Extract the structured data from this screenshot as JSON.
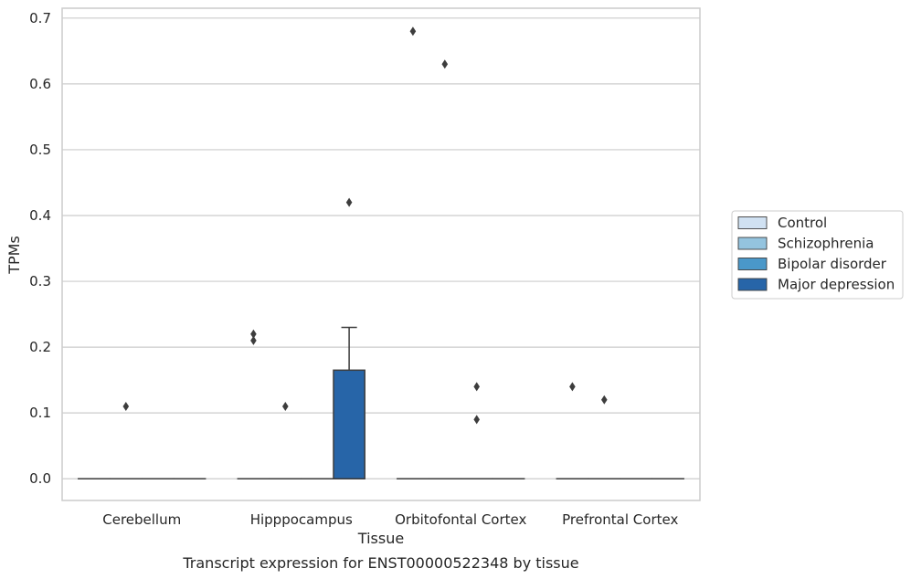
{
  "chart_data": {
    "type": "box",
    "title": "",
    "xlabel": "Tissue",
    "ylabel": "TPMs",
    "caption": "Transcript expression for ENST00000522348 by tissue",
    "ylim": [
      -0.033,
      0.715
    ],
    "yticks": [
      0.0,
      0.1,
      0.2,
      0.3,
      0.4,
      0.5,
      0.6,
      0.7
    ],
    "ytick_labels": [
      "0.0",
      "0.1",
      "0.2",
      "0.3",
      "0.4",
      "0.5",
      "0.6",
      "0.7"
    ],
    "categories": [
      "Cerebellum",
      "Hipppocampus",
      "Orbitofontal Cortex",
      "Prefrontal Cortex"
    ],
    "grid": "horizontal",
    "legend": {
      "placement": "right",
      "entries": [
        "Control",
        "Schizophrenia",
        "Bipolar disorder",
        "Major depression"
      ]
    },
    "colors": {
      "Control": "#d0e1f2",
      "Schizophrenia": "#94c4df",
      "Bipolar disorder": "#4a98c9",
      "Major depression": "#2765a8",
      "grid": "#cccccc",
      "box_edge": "#3d3d3d"
    },
    "series": [
      {
        "name": "Control",
        "boxes": [
          {
            "category": "Cerebellum",
            "q1": 0,
            "median": 0,
            "q3": 0,
            "whisker_low": 0,
            "whisker_high": 0,
            "outliers": []
          },
          {
            "category": "Hipppocampus",
            "q1": 0,
            "median": 0,
            "q3": 0,
            "whisker_low": 0,
            "whisker_high": 0,
            "outliers": [
              0.22,
              0.21
            ]
          },
          {
            "category": "Orbitofontal Cortex",
            "q1": 0,
            "median": 0,
            "q3": 0,
            "whisker_low": 0,
            "whisker_high": 0,
            "outliers": [
              0.68
            ]
          },
          {
            "category": "Prefrontal Cortex",
            "q1": 0,
            "median": 0,
            "q3": 0,
            "whisker_low": 0,
            "whisker_high": 0,
            "outliers": [
              0.14
            ]
          }
        ]
      },
      {
        "name": "Schizophrenia",
        "boxes": [
          {
            "category": "Cerebellum",
            "q1": 0,
            "median": 0,
            "q3": 0,
            "whisker_low": 0,
            "whisker_high": 0,
            "outliers": [
              0.11
            ]
          },
          {
            "category": "Hipppocampus",
            "q1": 0,
            "median": 0,
            "q3": 0,
            "whisker_low": 0,
            "whisker_high": 0,
            "outliers": [
              0.11
            ]
          },
          {
            "category": "Orbitofontal Cortex",
            "q1": 0,
            "median": 0,
            "q3": 0,
            "whisker_low": 0,
            "whisker_high": 0,
            "outliers": [
              0.63
            ]
          },
          {
            "category": "Prefrontal Cortex",
            "q1": 0,
            "median": 0,
            "q3": 0,
            "whisker_low": 0,
            "whisker_high": 0,
            "outliers": [
              0.12
            ]
          }
        ]
      },
      {
        "name": "Bipolar disorder",
        "boxes": [
          {
            "category": "Cerebellum",
            "q1": 0,
            "median": 0,
            "q3": 0,
            "whisker_low": 0,
            "whisker_high": 0,
            "outliers": []
          },
          {
            "category": "Hipppocampus",
            "q1": 0,
            "median": 0,
            "q3": 0,
            "whisker_low": 0,
            "whisker_high": 0,
            "outliers": []
          },
          {
            "category": "Orbitofontal Cortex",
            "q1": 0,
            "median": 0,
            "q3": 0,
            "whisker_low": 0,
            "whisker_high": 0,
            "outliers": [
              0.14,
              0.09
            ]
          },
          {
            "category": "Prefrontal Cortex",
            "q1": 0,
            "median": 0,
            "q3": 0,
            "whisker_low": 0,
            "whisker_high": 0,
            "outliers": []
          }
        ]
      },
      {
        "name": "Major depression",
        "boxes": [
          {
            "category": "Cerebellum",
            "q1": 0,
            "median": 0,
            "q3": 0,
            "whisker_low": 0,
            "whisker_high": 0,
            "outliers": []
          },
          {
            "category": "Hipppocampus",
            "q1": 0,
            "median": 0,
            "q3": 0.165,
            "whisker_low": 0,
            "whisker_high": 0.23,
            "outliers": [
              0.42
            ]
          },
          {
            "category": "Orbitofontal Cortex",
            "q1": 0,
            "median": 0,
            "q3": 0,
            "whisker_low": 0,
            "whisker_high": 0,
            "outliers": []
          },
          {
            "category": "Prefrontal Cortex",
            "q1": 0,
            "median": 0,
            "q3": 0,
            "whisker_low": 0,
            "whisker_high": 0,
            "outliers": []
          }
        ]
      }
    ]
  }
}
